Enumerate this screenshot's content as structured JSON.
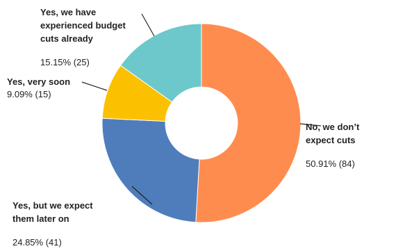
{
  "chart_data": {
    "type": "pie",
    "donut": true,
    "slices": [
      {
        "label_lines": [
          "No, we don’t",
          "expect cuts"
        ],
        "value_text": "50.91% (84)",
        "percent": 50.91,
        "count": 84,
        "color": "#ff8c4f"
      },
      {
        "label_lines": [
          "Yes, but we expect",
          "them later on"
        ],
        "value_text": "24.85% (41)",
        "percent": 24.85,
        "count": 41,
        "color": "#4f7dbb"
      },
      {
        "label_lines": [
          "Yes, very soon"
        ],
        "value_text": "9.09% (15)",
        "percent": 9.09,
        "count": 15,
        "color": "#fbc100"
      },
      {
        "label_lines": [
          "Yes, we have",
          "experienced budget",
          "cuts already"
        ],
        "value_text": "15.15% (25)",
        "percent": 15.15,
        "count": 25,
        "color": "#6cc8cb"
      }
    ]
  }
}
